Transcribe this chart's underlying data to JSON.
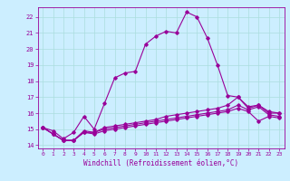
{
  "xlabel": "Windchill (Refroidissement éolien,°C)",
  "background_color": "#cceeff",
  "grid_color": "#aadddd",
  "line_color": "#990099",
  "xlim": [
    -0.5,
    23.5
  ],
  "ylim": [
    13.8,
    22.6
  ],
  "yticks": [
    14,
    15,
    16,
    17,
    18,
    19,
    20,
    21,
    22
  ],
  "xticks": [
    0,
    1,
    2,
    3,
    4,
    5,
    6,
    7,
    8,
    9,
    10,
    11,
    12,
    13,
    14,
    15,
    16,
    17,
    18,
    19,
    20,
    21,
    22,
    23
  ],
  "series": [
    [
      15.1,
      14.9,
      14.4,
      14.8,
      15.8,
      15.0,
      16.6,
      18.2,
      18.5,
      18.6,
      20.3,
      20.8,
      21.1,
      21.0,
      22.3,
      22.0,
      20.7,
      19.0,
      17.1,
      17.0,
      16.3,
      16.5,
      16.0,
      16.0
    ],
    [
      15.1,
      14.7,
      14.3,
      14.3,
      14.9,
      14.8,
      15.1,
      15.2,
      15.3,
      15.4,
      15.5,
      15.6,
      15.8,
      15.9,
      16.0,
      16.1,
      16.2,
      16.3,
      16.5,
      17.0,
      16.4,
      16.5,
      16.1,
      16.0
    ],
    [
      15.1,
      14.7,
      14.3,
      14.3,
      14.8,
      14.8,
      15.0,
      15.1,
      15.2,
      15.3,
      15.4,
      15.5,
      15.6,
      15.7,
      15.8,
      15.9,
      16.0,
      16.1,
      16.2,
      16.5,
      16.2,
      16.4,
      15.9,
      15.8
    ],
    [
      15.1,
      14.7,
      14.3,
      14.3,
      14.8,
      14.7,
      14.9,
      15.0,
      15.1,
      15.2,
      15.3,
      15.4,
      15.5,
      15.6,
      15.7,
      15.8,
      15.9,
      16.0,
      16.1,
      16.3,
      16.1,
      15.5,
      15.8,
      15.7
    ]
  ]
}
